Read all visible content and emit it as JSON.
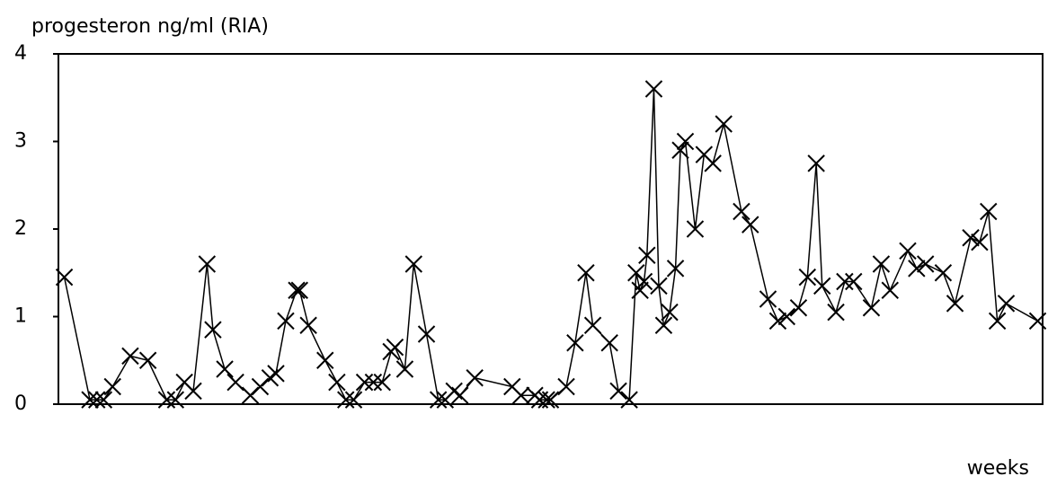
{
  "chart_data": {
    "type": "line",
    "title": "progesteron ng/ml (RIA)",
    "x_label": "weeks",
    "x": [
      0.6,
      3.2,
      3.9,
      4.6,
      5.5,
      7.3,
      9.1,
      11.0,
      11.9,
      12.8,
      13.7,
      15.1,
      15.7,
      16.9,
      18.0,
      19.5,
      20.5,
      21.5,
      22.1,
      23.1,
      24.2,
      24.5,
      25.4,
      27.1,
      28.3,
      29.2,
      30.0,
      31.1,
      32.0,
      32.9,
      33.8,
      34.2,
      35.2,
      36.1,
      37.4,
      38.6,
      39.3,
      40.2,
      40.8,
      42.3,
      46.1,
      47.0,
      48.4,
      48.9,
      49.6,
      50.0,
      51.6,
      52.5,
      53.6,
      54.3,
      56.0,
      56.9,
      58.0,
      58.7,
      59.1,
      59.5,
      59.8,
      60.5,
      61.0,
      61.5,
      62.1,
      62.7,
      63.2,
      63.7,
      64.7,
      65.6,
      66.5,
      67.6,
      69.4,
      70.3,
      72.1,
      73.1,
      74.0,
      75.2,
      76.1,
      77.0,
      77.6,
      79.0,
      79.9,
      80.8,
      82.6,
      83.6,
      84.5,
      86.3,
      87.2,
      88.1,
      89.9,
      91.1,
      92.7,
      93.6,
      94.5,
      95.4,
      96.3,
      99.5
    ],
    "series": [
      {
        "color": "#000000",
        "values": [
          1.45,
          0.05,
          0.05,
          0.05,
          0.2,
          0.55,
          0.5,
          0.05,
          0.05,
          0.25,
          0.15,
          1.6,
          0.85,
          0.4,
          0.25,
          0.1,
          0.2,
          0.3,
          0.35,
          0.95,
          1.3,
          1.3,
          0.9,
          0.5,
          0.25,
          0.05,
          0.05,
          0.25,
          0.25,
          0.25,
          0.6,
          0.65,
          0.4,
          1.6,
          0.8,
          0.05,
          0.05,
          0.15,
          0.1,
          0.3,
          0.2,
          0.1,
          0.1,
          0.05,
          0.05,
          0.05,
          0.2,
          0.7,
          1.5,
          0.9,
          0.7,
          0.15,
          0.05,
          1.5,
          1.3,
          1.4,
          1.7,
          3.6,
          1.35,
          0.9,
          1.05,
          1.55,
          2.9,
          3.0,
          2.0,
          2.85,
          2.75,
          3.2,
          2.2,
          2.05,
          1.2,
          0.95,
          1.0,
          1.1,
          1.45,
          2.75,
          1.35,
          1.05,
          1.4,
          1.4,
          1.1,
          1.6,
          1.3,
          1.75,
          1.55,
          1.6,
          1.5,
          1.15,
          1.9,
          1.85,
          2.2,
          0.95,
          1.15,
          0.95
        ]
      }
    ],
    "xlim": [
      0,
      100
    ],
    "ylim": [
      0,
      4
    ],
    "yticks": [
      0,
      1,
      2,
      3,
      4
    ],
    "marker": "x"
  }
}
